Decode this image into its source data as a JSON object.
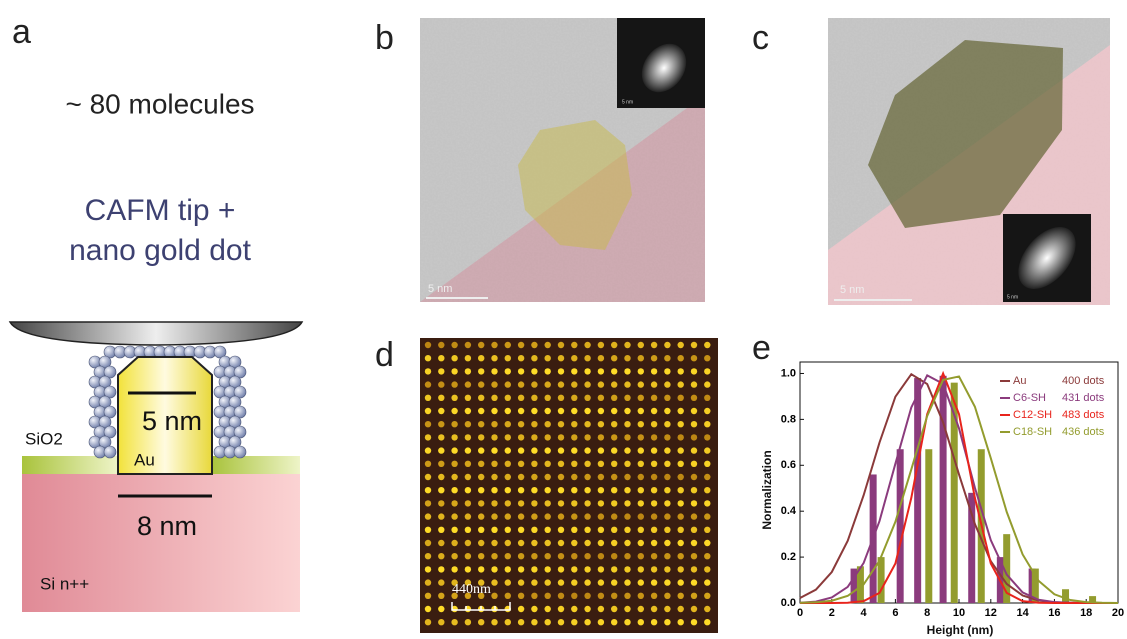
{
  "panels": {
    "a": {
      "label": "a",
      "caption": "~ 80 molecules",
      "title_lines": [
        "CAFM tip +",
        "nano gold dot"
      ],
      "sio2": "SiO2",
      "au": "Au",
      "top_size": "5 nm",
      "bottom_size": "8 nm",
      "substrate": "Si n++"
    },
    "b": {
      "label": "b",
      "scale_bar": "5 nm",
      "inset_scale": "5 nm"
    },
    "c": {
      "label": "c",
      "scale_bar": "5 nm",
      "inset_scale": "5 nm"
    },
    "d": {
      "label": "d",
      "scale_bar": "440nm"
    },
    "e": {
      "label": "e"
    }
  },
  "chart_data": {
    "type": "line",
    "x_label": "Height (nm)",
    "y_label": "Normalization",
    "x": [
      0,
      1,
      2,
      3,
      4,
      5,
      6,
      7,
      8,
      9,
      10,
      11,
      12,
      13,
      14,
      15,
      16,
      17,
      18,
      19,
      20
    ],
    "xlim": [
      0,
      20
    ],
    "xticks": [
      0,
      2,
      4,
      6,
      8,
      10,
      12,
      14,
      16,
      18,
      20
    ],
    "ylim": [
      0,
      1.05
    ],
    "yticks": [
      {
        "value": 0,
        "label": "0.0"
      },
      0.2,
      0.4,
      0.6,
      0.8,
      {
        "value": 1,
        "label": "1.0"
      }
    ],
    "series": [
      {
        "name": "Au",
        "dots": "400 dots",
        "color": "#8b3a3a",
        "values": [
          0.022,
          0.058,
          0.135,
          0.271,
          0.469,
          0.699,
          0.899,
          0.997,
          0.954,
          0.787,
          0.56,
          0.344,
          0.182,
          0.083,
          0.033,
          0.011,
          0.003,
          0.001,
          0,
          0,
          0
        ]
      },
      {
        "name": "C6-SH",
        "dots": "431 dots",
        "color": "#8b3b7d",
        "values": [
          0.001,
          0.006,
          0.024,
          0.07,
          0.174,
          0.357,
          0.607,
          0.852,
          0.992,
          0.955,
          0.761,
          0.502,
          0.274,
          0.124,
          0.046,
          0.014,
          0.004,
          0.001,
          0,
          0,
          0
        ],
        "bar_x": [
          3.4,
          4.6,
          6.3,
          7.4,
          9.0,
          10.8,
          12.6,
          14.6
        ],
        "bar_values": [
          0.15,
          0.56,
          0.67,
          0.98,
          0.99,
          0.48,
          0.2,
          0.15
        ]
      },
      {
        "name": "C12-SH",
        "dots": "483 dots",
        "color": "#e8241c",
        "values": [
          0,
          0,
          0,
          0.001,
          0.008,
          0.044,
          0.172,
          0.458,
          0.823,
          1,
          0.823,
          0.458,
          0.172,
          0.044,
          0.008,
          0.001,
          0,
          0,
          0,
          0,
          0
        ]
      },
      {
        "name": "C18-SH",
        "dots": "436 dots",
        "color": "#939c2e",
        "values": [
          0.001,
          0.003,
          0.01,
          0.031,
          0.081,
          0.184,
          0.354,
          0.582,
          0.815,
          0.972,
          0.987,
          0.855,
          0.631,
          0.397,
          0.212,
          0.097,
          0.038,
          0.013,
          0.004,
          0.001,
          0
        ],
        "bar_x": [
          3.8,
          5.1,
          8.1,
          9.7,
          11.4,
          13.0,
          14.8,
          16.7,
          18.4
        ],
        "bar_values": [
          0.16,
          0.2,
          0.67,
          0.96,
          0.67,
          0.3,
          0.15,
          0.06,
          0.03
        ]
      }
    ]
  }
}
